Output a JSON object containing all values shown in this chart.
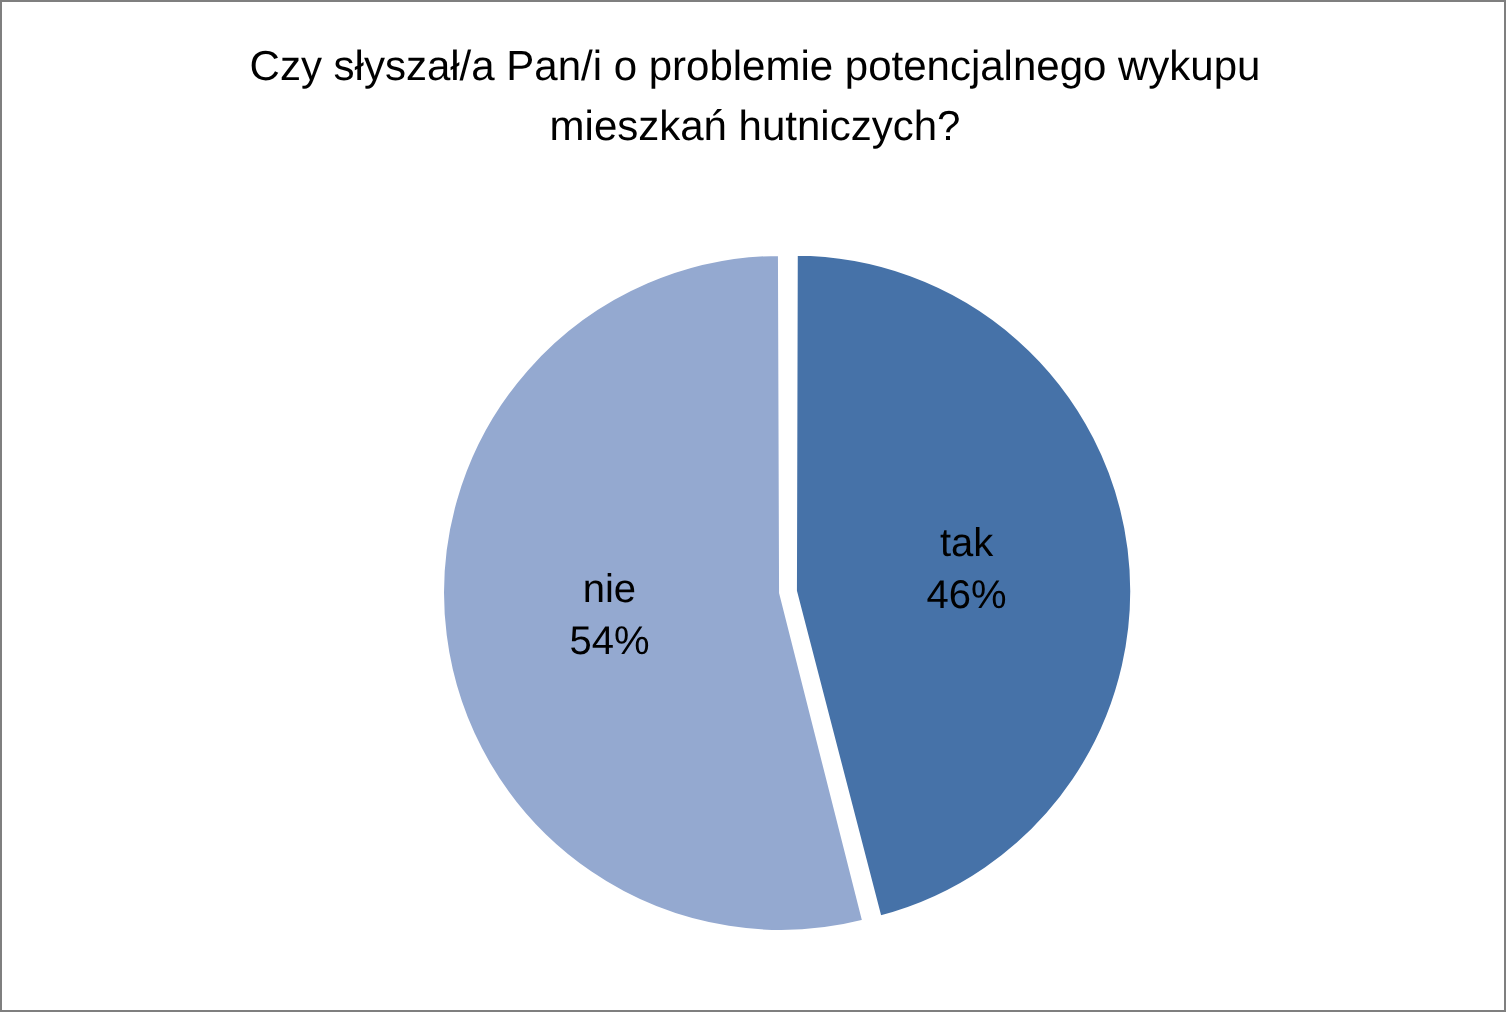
{
  "chart_data": {
    "type": "pie",
    "title": "Czy słyszał/a Pan/i o problemie potencjalnego wykupu mieszkań hutniczych?",
    "categories": [
      "tak",
      "nie"
    ],
    "values": [
      46,
      54
    ],
    "value_labels": [
      "46%",
      "54%"
    ],
    "colors": [
      "#4672a8",
      "#94a9d0"
    ],
    "legend": false
  }
}
